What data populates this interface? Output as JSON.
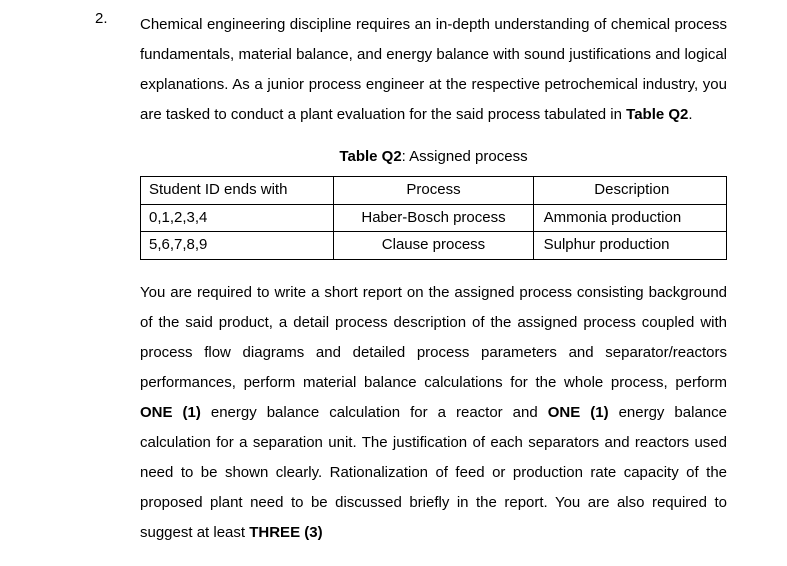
{
  "question": {
    "number": "2.",
    "para1": "Chemical engineering discipline requires an in-depth understanding of chemical process fundamentals, material balance, and energy balance with sound justifications and logical explanations. As a junior process engineer at the respective petrochemical industry, you are tasked to conduct a plant evaluation for the said process tabulated in ",
    "para1_bold": "Table Q2",
    "para1_tail": ".",
    "table": {
      "caption_label": "Table Q2",
      "caption_rest": ": Assigned process",
      "headers": {
        "id": "Student ID ends with",
        "proc": "Process",
        "desc": "Description"
      },
      "rows": [
        {
          "id": "0,1,2,3,4",
          "proc": "Haber-Bosch process",
          "desc": "Ammonia production"
        },
        {
          "id": "5,6,7,8,9",
          "proc": "Clause process",
          "desc": "Sulphur production"
        }
      ]
    },
    "para2_a": "You are required to write a short report on the assigned process consisting background of the said product, a detail process description of the assigned process coupled with process flow diagrams and detailed process parameters and separator/reactors performances, perform material balance calculations for the whole process, perform ",
    "para2_b_bold": "ONE (1)",
    "para2_c": " energy balance calculation for a reactor and ",
    "para2_d_bold": "ONE (1)",
    "para2_e": " energy balance calculation for a separation unit. The justification of each separators and reactors used need to be shown clearly. Rationalization of feed or production rate capacity of the proposed plant need to be discussed briefly in the report. You are also required to suggest at least ",
    "para2_f_bold": "THREE (3)"
  }
}
